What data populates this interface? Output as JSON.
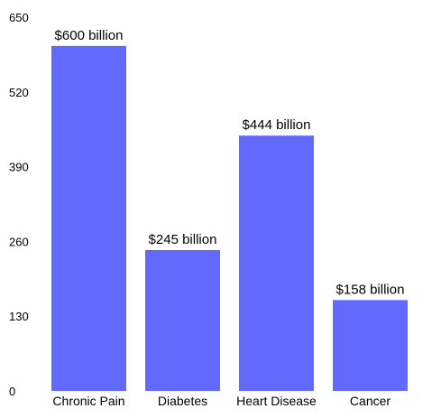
{
  "chart_data": {
    "type": "bar",
    "categories": [
      "Chronic Pain",
      "Diabetes",
      "Heart Disease",
      "Cancer"
    ],
    "values": [
      600,
      245,
      444,
      158
    ],
    "data_labels": [
      "$600 billion",
      "$245 billion",
      "$444 billion",
      "$158 billion"
    ],
    "yticks": [
      "0",
      "130",
      "260",
      "390",
      "520",
      "650"
    ],
    "ylim": [
      0,
      650
    ],
    "bar_color": "#6269fd",
    "title": "",
    "xlabel": "",
    "ylabel": "",
    "grid": false,
    "legend": "none"
  }
}
